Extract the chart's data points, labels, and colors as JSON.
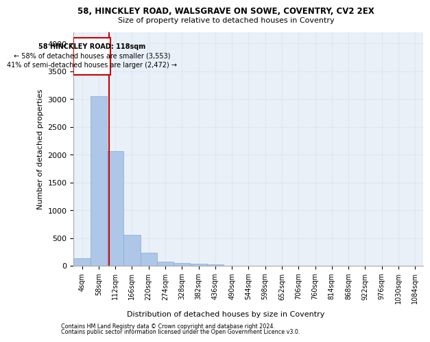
{
  "title_line1": "58, HINCKLEY ROAD, WALSGRAVE ON SOWE, COVENTRY, CV2 2EX",
  "title_line2": "Size of property relative to detached houses in Coventry",
  "xlabel": "Distribution of detached houses by size in Coventry",
  "ylabel": "Number of detached properties",
  "bin_labels": [
    "4sqm",
    "58sqm",
    "112sqm",
    "166sqm",
    "220sqm",
    "274sqm",
    "328sqm",
    "382sqm",
    "436sqm",
    "490sqm",
    "544sqm",
    "598sqm",
    "652sqm",
    "706sqm",
    "760sqm",
    "814sqm",
    "868sqm",
    "922sqm",
    "976sqm",
    "1030sqm",
    "1084sqm"
  ],
  "bar_values": [
    140,
    3050,
    2060,
    560,
    235,
    80,
    55,
    35,
    30,
    0,
    0,
    0,
    0,
    0,
    0,
    0,
    0,
    0,
    0,
    0,
    0
  ],
  "bar_color": "#aec6e8",
  "bar_edge_color": "#7bafd4",
  "property_label": "58 HINCKLEY ROAD: 118sqm",
  "annotation_line1": "← 58% of detached houses are smaller (3,553)",
  "annotation_line2": "41% of semi-detached houses are larger (2,472) →",
  "vline_color": "#cc0000",
  "box_edge_color": "#cc0000",
  "ylim": [
    0,
    4200
  ],
  "yticks": [
    0,
    500,
    1000,
    1500,
    2000,
    2500,
    3000,
    3500,
    4000
  ],
  "grid_color": "#dce6f3",
  "bg_color": "#eaf0f8",
  "footer_line1": "Contains HM Land Registry data © Crown copyright and database right 2024.",
  "footer_line2": "Contains public sector information licensed under the Open Government Licence v3.0.",
  "vline_x_bin": 1.611
}
